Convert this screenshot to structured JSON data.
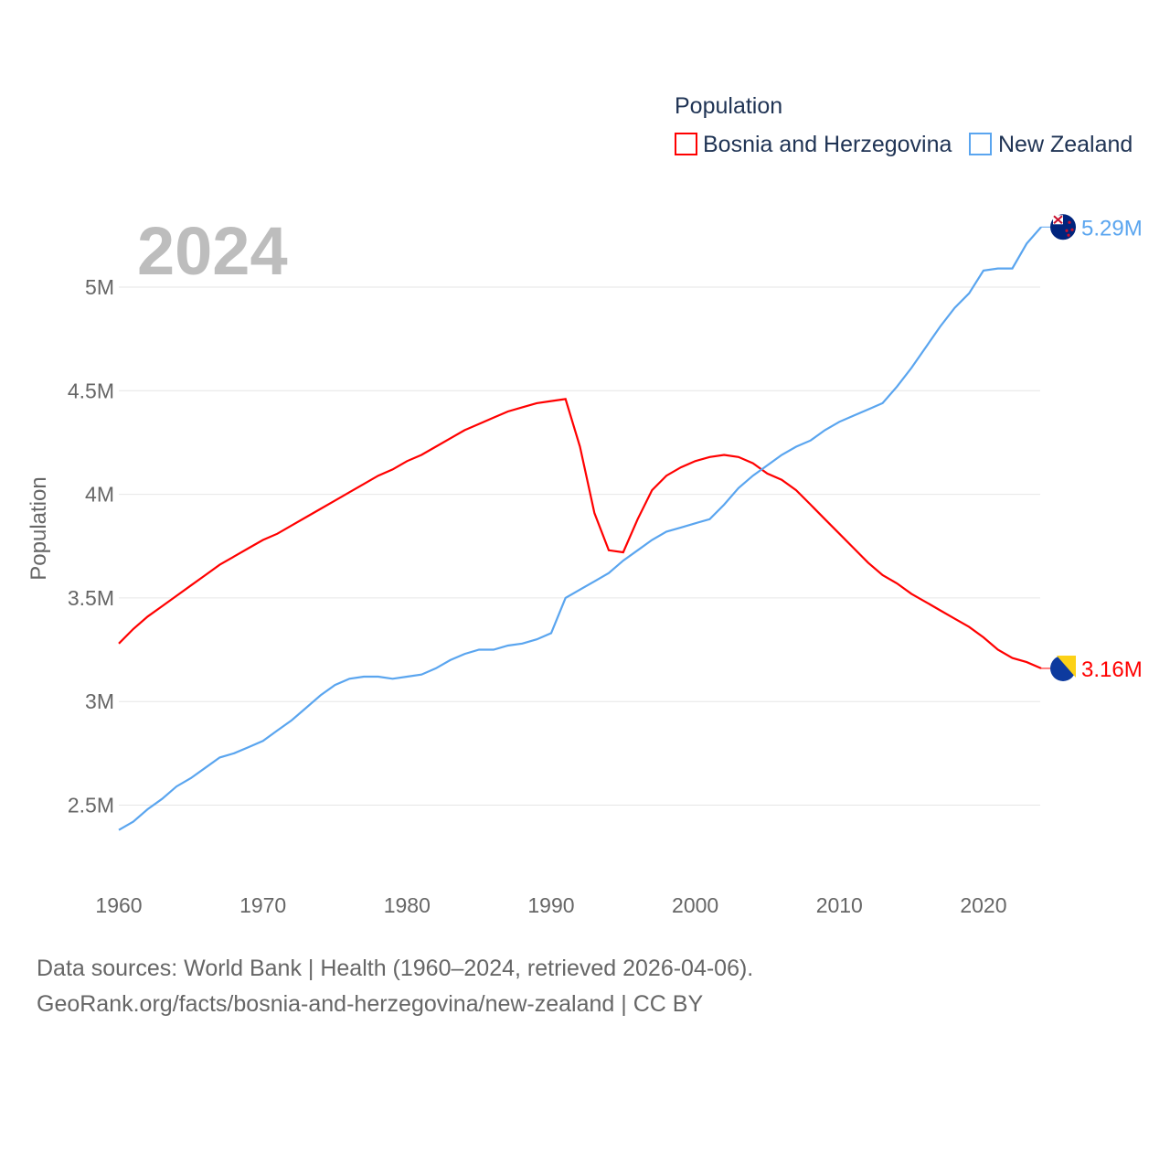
{
  "chart_data": {
    "type": "line",
    "year_label": "2024",
    "legend_title": "Population",
    "legend_placement": "top-right",
    "ylabel": "Population",
    "xlabel": "",
    "xlim": [
      1960,
      2024
    ],
    "ylim": [
      2.2,
      5.4
    ],
    "y_unit": "millions",
    "x_ticks": [
      "1960",
      "1970",
      "1980",
      "1990",
      "2000",
      "2010",
      "2020"
    ],
    "y_ticks": [
      {
        "value": 2.5,
        "label": "2.5M"
      },
      {
        "value": 3,
        "label": "3M"
      },
      {
        "value": 3.5,
        "label": "3.5M"
      },
      {
        "value": 4,
        "label": "4M"
      },
      {
        "value": 4.5,
        "label": "4.5M"
      },
      {
        "value": 5,
        "label": "5M"
      }
    ],
    "grid": true,
    "x_start": 1960,
    "series": [
      {
        "name": "Bosnia and Herzegovina",
        "color": "#ff0000",
        "end_label": "3.16M",
        "flag": "bosnia-flag-icon",
        "values": [
          3.28,
          3.35,
          3.41,
          3.46,
          3.51,
          3.56,
          3.61,
          3.66,
          3.7,
          3.74,
          3.78,
          3.81,
          3.85,
          3.89,
          3.93,
          3.97,
          4.01,
          4.05,
          4.09,
          4.12,
          4.16,
          4.19,
          4.23,
          4.27,
          4.31,
          4.34,
          4.37,
          4.4,
          4.42,
          4.44,
          4.45,
          4.46,
          4.23,
          3.91,
          3.73,
          3.72,
          3.88,
          4.02,
          4.09,
          4.13,
          4.16,
          4.18,
          4.19,
          4.18,
          4.15,
          4.1,
          4.07,
          4.02,
          3.95,
          3.88,
          3.81,
          3.74,
          3.67,
          3.61,
          3.57,
          3.52,
          3.48,
          3.44,
          3.4,
          3.36,
          3.31,
          3.25,
          3.21,
          3.19,
          3.16
        ]
      },
      {
        "name": "New Zealand",
        "color": "#5aa5ef",
        "end_label": "5.29M",
        "flag": "new-zealand-flag-icon",
        "values": [
          2.38,
          2.42,
          2.48,
          2.53,
          2.59,
          2.63,
          2.68,
          2.73,
          2.75,
          2.78,
          2.81,
          2.86,
          2.91,
          2.97,
          3.03,
          3.08,
          3.11,
          3.12,
          3.12,
          3.11,
          3.12,
          3.13,
          3.16,
          3.2,
          3.23,
          3.25,
          3.25,
          3.27,
          3.28,
          3.3,
          3.33,
          3.5,
          3.54,
          3.58,
          3.62,
          3.68,
          3.73,
          3.78,
          3.82,
          3.84,
          3.86,
          3.88,
          3.95,
          4.03,
          4.09,
          4.14,
          4.19,
          4.23,
          4.26,
          4.31,
          4.35,
          4.38,
          4.41,
          4.44,
          4.52,
          4.61,
          4.71,
          4.81,
          4.9,
          4.97,
          5.08,
          5.09,
          5.09,
          5.21,
          5.29
        ]
      }
    ]
  },
  "footer": {
    "line1": "Data sources: World Bank | Health (1960–2024, retrieved 2026-04-06).",
    "line2": "GeoRank.org/facts/bosnia-and-herzegovina/new-zealand | CC BY"
  }
}
